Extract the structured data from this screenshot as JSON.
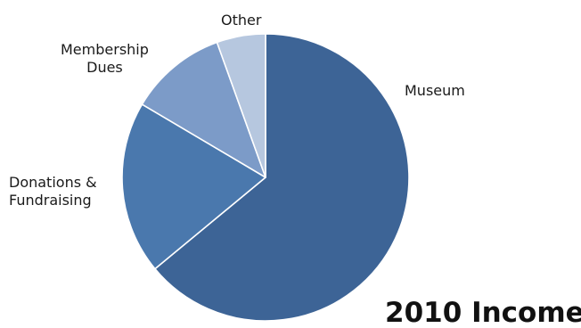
{
  "chart_data": {
    "type": "pie",
    "title": "2010 Income",
    "slices": [
      {
        "label": "Museum",
        "value": 64,
        "color": "#3D6496"
      },
      {
        "label": "Donations &\nFundraising",
        "value": 19.5,
        "color": "#4A78AD"
      },
      {
        "label": "Membership\nDues",
        "value": 11,
        "color": "#7C9BC8"
      },
      {
        "label": "Other",
        "value": 5.5,
        "color": "#B6C7DF"
      }
    ],
    "start_angle_deg": 0,
    "direction": "clockwise",
    "slice_border_color": "#ffffff",
    "legend": "none"
  }
}
